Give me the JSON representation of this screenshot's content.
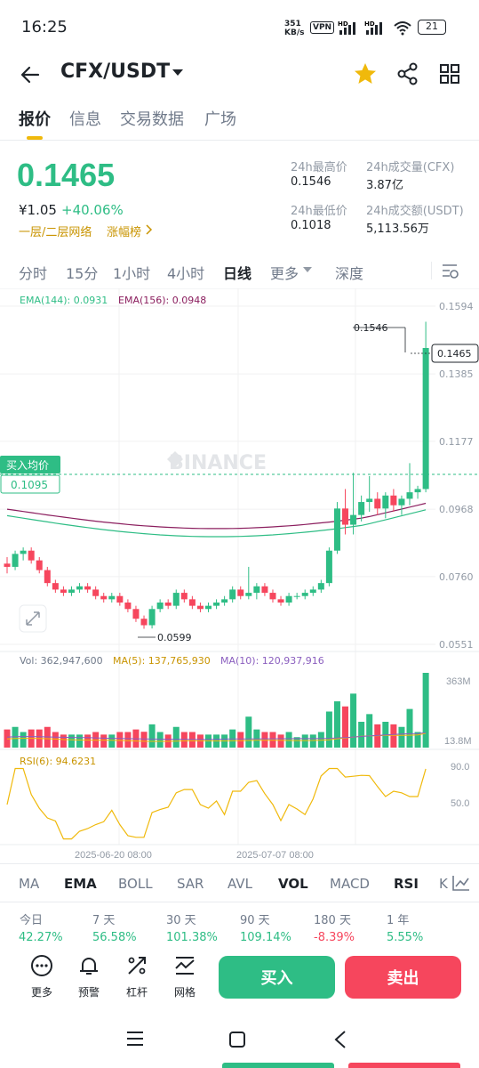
{
  "status": {
    "time": "16:25",
    "net_speed": "351\nKB/s",
    "vpn": "VPN",
    "battery": "21"
  },
  "header": {
    "pair": "CFX/USDT"
  },
  "tabs": [
    "报价",
    "信息",
    "交易数据",
    "广场"
  ],
  "price": {
    "last": "0.1465",
    "cny": "¥1.05",
    "change": "+40.06%",
    "tag1": "一层/二层网络",
    "tag2": "涨幅榜"
  },
  "stats": {
    "high_label": "24h最高价",
    "high": "0.1546",
    "vol_label": "24h成交量(CFX)",
    "vol": "3.87亿",
    "low_label": "24h最低价",
    "low": "0.1018",
    "amount_label": "24h成交额(USDT)",
    "amount": "5,113.56万"
  },
  "intervals": [
    "分时",
    "15分",
    "1小时",
    "4小时",
    "日线",
    "更多",
    "深度"
  ],
  "chart": {
    "ema144": "EMA(144): 0.0931",
    "ema156": "EMA(156): 0.0948",
    "price_ticks": [
      "0.1594",
      "0.1385",
      "0.1177",
      "0.0968",
      "0.0760",
      "0.0551"
    ],
    "current_label": "0.1465",
    "high_marker": "0.1546",
    "low_marker": "0.0599",
    "buy_avg_label": "买入均价",
    "buy_avg_value": "0.1095",
    "watermark": "BINANCE",
    "vol_line": "Vol: 362,947,600",
    "ma5": "MA(5): 137,765,930",
    "ma10": "MA(10): 120,937,916",
    "vol_ticks": [
      "363M",
      "13.8M"
    ],
    "rsi_label": "RSI(6): 94.6231",
    "rsi_ticks": [
      "90.0",
      "50.0"
    ],
    "date1": "2025-06-20 08:00",
    "date2": "2025-07-07 08:00"
  },
  "chart_data": {
    "type": "candlestick",
    "ylim": [
      0.0551,
      0.1594
    ],
    "candles": [
      [
        0.08,
        0.082,
        0.077,
        0.079
      ],
      [
        0.079,
        0.084,
        0.078,
        0.083
      ],
      [
        0.083,
        0.085,
        0.081,
        0.084
      ],
      [
        0.084,
        0.085,
        0.08,
        0.081
      ],
      [
        0.081,
        0.082,
        0.077,
        0.078
      ],
      [
        0.078,
        0.079,
        0.073,
        0.074
      ],
      [
        0.074,
        0.075,
        0.071,
        0.072
      ],
      [
        0.072,
        0.073,
        0.07,
        0.071
      ],
      [
        0.071,
        0.073,
        0.07,
        0.072
      ],
      [
        0.072,
        0.074,
        0.071,
        0.073
      ],
      [
        0.073,
        0.074,
        0.071,
        0.072
      ],
      [
        0.072,
        0.073,
        0.069,
        0.07
      ],
      [
        0.07,
        0.071,
        0.068,
        0.069
      ],
      [
        0.069,
        0.071,
        0.068,
        0.07
      ],
      [
        0.07,
        0.071,
        0.067,
        0.068
      ],
      [
        0.068,
        0.069,
        0.065,
        0.066
      ],
      [
        0.066,
        0.067,
        0.062,
        0.063
      ],
      [
        0.063,
        0.064,
        0.0599,
        0.061
      ],
      [
        0.061,
        0.067,
        0.06,
        0.066
      ],
      [
        0.066,
        0.069,
        0.065,
        0.068
      ],
      [
        0.068,
        0.069,
        0.066,
        0.067
      ],
      [
        0.067,
        0.072,
        0.066,
        0.071
      ],
      [
        0.071,
        0.072,
        0.068,
        0.069
      ],
      [
        0.069,
        0.07,
        0.066,
        0.067
      ],
      [
        0.067,
        0.068,
        0.065,
        0.066
      ],
      [
        0.066,
        0.068,
        0.065,
        0.067
      ],
      [
        0.067,
        0.069,
        0.066,
        0.068
      ],
      [
        0.068,
        0.07,
        0.067,
        0.069
      ],
      [
        0.069,
        0.073,
        0.068,
        0.072
      ],
      [
        0.072,
        0.073,
        0.069,
        0.07
      ],
      [
        0.07,
        0.079,
        0.069,
        0.071
      ],
      [
        0.071,
        0.074,
        0.069,
        0.073
      ],
      [
        0.073,
        0.074,
        0.07,
        0.071
      ],
      [
        0.071,
        0.072,
        0.068,
        0.069
      ],
      [
        0.069,
        0.07,
        0.067,
        0.068
      ],
      [
        0.068,
        0.071,
        0.067,
        0.07
      ],
      [
        0.07,
        0.071,
        0.069,
        0.07
      ],
      [
        0.07,
        0.072,
        0.069,
        0.071
      ],
      [
        0.071,
        0.073,
        0.07,
        0.072
      ],
      [
        0.072,
        0.075,
        0.071,
        0.074
      ],
      [
        0.074,
        0.085,
        0.073,
        0.084
      ],
      [
        0.084,
        0.099,
        0.083,
        0.097
      ],
      [
        0.097,
        0.103,
        0.089,
        0.092
      ],
      [
        0.092,
        0.108,
        0.089,
        0.095
      ],
      [
        0.095,
        0.101,
        0.093,
        0.099
      ],
      [
        0.099,
        0.107,
        0.096,
        0.1
      ],
      [
        0.1,
        0.102,
        0.095,
        0.097
      ],
      [
        0.097,
        0.102,
        0.094,
        0.101
      ],
      [
        0.101,
        0.103,
        0.096,
        0.098
      ],
      [
        0.098,
        0.101,
        0.095,
        0.1
      ],
      [
        0.1,
        0.111,
        0.098,
        0.102
      ],
      [
        0.102,
        0.104,
        0.1,
        0.103
      ],
      [
        0.103,
        0.1546,
        0.102,
        0.1465
      ]
    ],
    "volume_range": [
      13.8,
      363
    ],
    "rsi_range": [
      0,
      100
    ]
  },
  "indicators": [
    "MA",
    "EMA",
    "BOLL",
    "SAR",
    "AVL",
    "VOL",
    "MACD",
    "RSI",
    "K"
  ],
  "performance": [
    {
      "label": "今日",
      "value": "42.27%",
      "dir": "up"
    },
    {
      "label": "7 天",
      "value": "56.58%",
      "dir": "up"
    },
    {
      "label": "30 天",
      "value": "101.38%",
      "dir": "up"
    },
    {
      "label": "90 天",
      "value": "109.14%",
      "dir": "up"
    },
    {
      "label": "180 天",
      "value": "-8.39%",
      "dir": "down"
    },
    {
      "label": "1 年",
      "value": "5.55%",
      "dir": "up"
    }
  ],
  "tools": [
    "更多",
    "预警",
    "杠杆",
    "网格"
  ],
  "actions": {
    "buy": "买入",
    "sell": "卖出"
  },
  "colors": {
    "up": "#2ebd85",
    "down": "#f6465d",
    "accent": "#f0b90b"
  }
}
